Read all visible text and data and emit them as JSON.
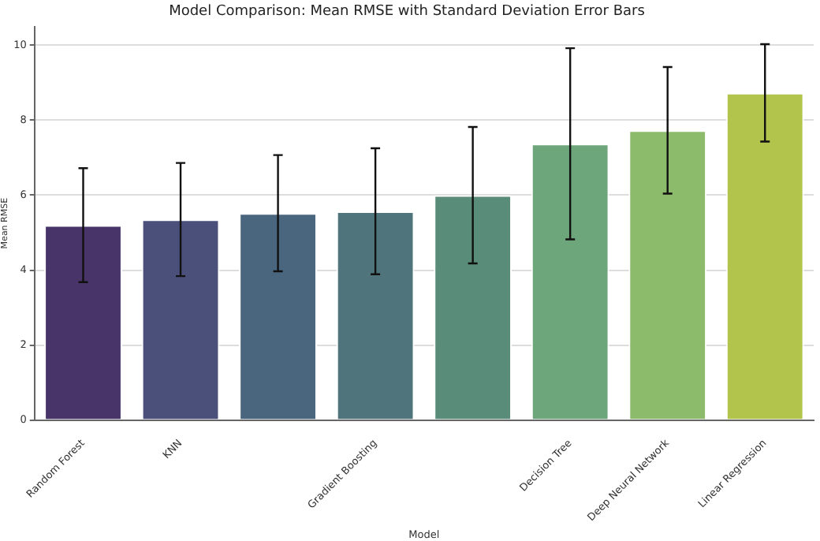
{
  "chart_data": {
    "type": "bar",
    "title": "Model Comparison: Mean RMSE with Standard Deviation Error Bars",
    "xlabel": "Model",
    "ylabel": "Mean RMSE",
    "categories": [
      "Random Forest",
      "KNN",
      null,
      "Gradient Boosting",
      null,
      "Decision Tree",
      "Deep Neural Network",
      "Linear Regression"
    ],
    "values": [
      5.2,
      5.35,
      5.52,
      5.57,
      6.0,
      7.37,
      7.73,
      8.73
    ],
    "errors": [
      1.52,
      1.51,
      1.55,
      1.68,
      1.82,
      2.55,
      1.69,
      1.3
    ],
    "colors": [
      "#483469",
      "#4b507b",
      "#4a667e",
      "#4f747c",
      "#5a8c7a",
      "#6ca67a",
      "#8dbb6c",
      "#b2c44c"
    ],
    "ylim": [
      0,
      10.5
    ],
    "yticks": [
      0,
      2,
      4,
      6,
      8,
      10
    ],
    "grid": "y",
    "legend": false
  }
}
